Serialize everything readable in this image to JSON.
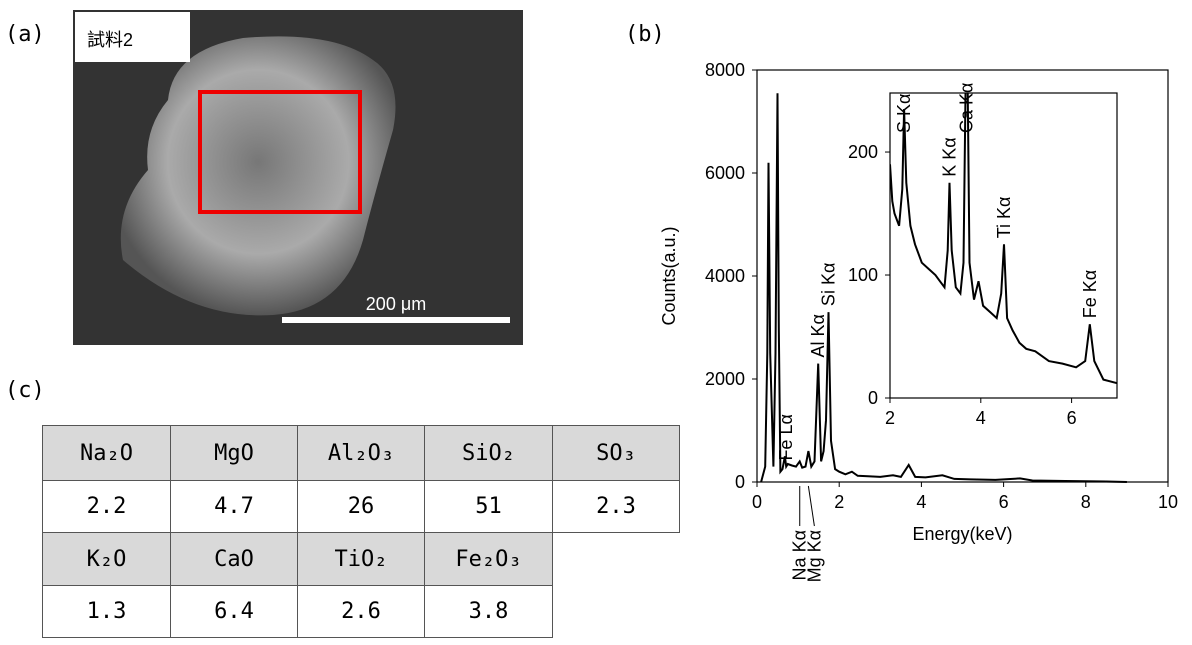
{
  "panel_labels": [
    "(a)",
    "(b)",
    "(c)"
  ],
  "image": {
    "label": "試料2",
    "scale_bar": "200 μm"
  },
  "chart_data": [
    {
      "type": "line",
      "x_label": "Energy(keV)",
      "y_label": "Counts(a.u.)",
      "x": [
        0.1,
        0.2,
        0.25,
        0.28,
        0.32,
        0.4,
        0.45,
        0.5,
        0.53,
        0.57,
        0.62,
        0.68,
        0.71,
        0.75,
        0.85,
        0.95,
        1.04,
        1.1,
        1.18,
        1.25,
        1.32,
        1.4,
        1.49,
        1.56,
        1.62,
        1.68,
        1.74,
        1.8,
        1.9,
        2.0,
        2.15,
        2.31,
        2.45,
        2.7,
        3.0,
        3.31,
        3.5,
        3.69,
        3.85,
        4.1,
        4.51,
        4.8,
        5.2,
        5.8,
        6.4,
        6.7,
        7.5,
        8.5,
        9.0
      ],
      "values": [
        0,
        300,
        2500,
        6200,
        2500,
        300,
        2500,
        7550,
        3000,
        200,
        250,
        500,
        300,
        350,
        320,
        300,
        400,
        280,
        300,
        600,
        300,
        400,
        2300,
        400,
        600,
        1200,
        3300,
        800,
        250,
        200,
        150,
        200,
        120,
        110,
        100,
        130,
        100,
        330,
        100,
        90,
        130,
        60,
        50,
        40,
        70,
        30,
        20,
        10,
        0
      ],
      "color": "#000000",
      "xlim": [
        0,
        10
      ],
      "xticks": [
        0,
        2,
        4,
        6,
        8,
        10
      ],
      "ylim": [
        0,
        8000
      ],
      "yticks": [
        0,
        2000,
        4000,
        6000,
        8000
      ],
      "peak_labels": [
        {
          "text": "Fe Lα",
          "x": 0.71
        },
        {
          "text": "Al Kα",
          "x": 1.49
        },
        {
          "text": "Si Kα",
          "x": 1.74
        }
      ],
      "peak_labels_below": [
        {
          "text": "Na Kα",
          "x": 1.04
        },
        {
          "text": "Mg Kα",
          "x": 1.25
        }
      ]
    },
    {
      "type": "line",
      "x": [
        2.0,
        2.05,
        2.1,
        2.2,
        2.27,
        2.31,
        2.36,
        2.45,
        2.55,
        2.7,
        2.85,
        3.0,
        3.1,
        3.2,
        3.27,
        3.31,
        3.36,
        3.45,
        3.55,
        3.62,
        3.69,
        3.75,
        3.85,
        3.95,
        4.05,
        4.2,
        4.35,
        4.45,
        4.51,
        4.58,
        4.7,
        4.85,
        5.0,
        5.2,
        5.5,
        5.8,
        6.1,
        6.3,
        6.4,
        6.5,
        6.7,
        7.0
      ],
      "values": [
        190,
        160,
        150,
        140,
        170,
        235,
        175,
        140,
        125,
        110,
        105,
        100,
        95,
        90,
        120,
        175,
        120,
        90,
        85,
        110,
        330,
        110,
        80,
        95,
        75,
        70,
        65,
        85,
        125,
        65,
        55,
        45,
        40,
        38,
        30,
        28,
        25,
        30,
        60,
        30,
        15,
        12
      ],
      "color": "#000000",
      "xlim": [
        2,
        7
      ],
      "xticks": [
        2,
        4,
        6
      ],
      "ylim": [
        0,
        248
      ],
      "yticks": [
        0,
        100,
        200
      ],
      "peak_labels": [
        {
          "text": "S Kα",
          "x": 2.31
        },
        {
          "text": "K Kα",
          "x": 3.31
        },
        {
          "text": "Ca Kα",
          "x": 3.69
        },
        {
          "text": "Ti Kα",
          "x": 4.51
        },
        {
          "text": "Fe Kα",
          "x": 6.4
        }
      ]
    }
  ],
  "table": {
    "rows": [
      [
        "Na₂O",
        "MgO",
        "Al₂O₃",
        "SiO₂",
        "SO₃"
      ],
      [
        2.2,
        4.7,
        26,
        51,
        2.3
      ],
      [
        "K₂O",
        "CaO",
        "TiO₂",
        "Fe₂O₃"
      ],
      [
        1.3,
        6.4,
        2.6,
        3.8
      ]
    ]
  }
}
